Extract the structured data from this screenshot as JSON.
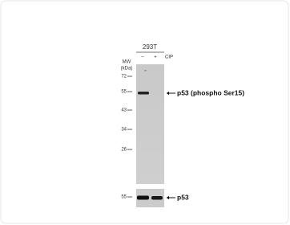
{
  "header": {
    "cell_line": "293T",
    "lanes": [
      "–",
      "+"
    ],
    "treatment": "CIP"
  },
  "mw_axis": {
    "title": "MW",
    "unit": "(kDa)",
    "markers": [
      "72",
      "55",
      "43",
      "34",
      "26"
    ]
  },
  "upper_panel": {
    "label": "p53 (phospho Ser15)"
  },
  "lower_panel": {
    "marker": "55",
    "label": "p53"
  }
}
